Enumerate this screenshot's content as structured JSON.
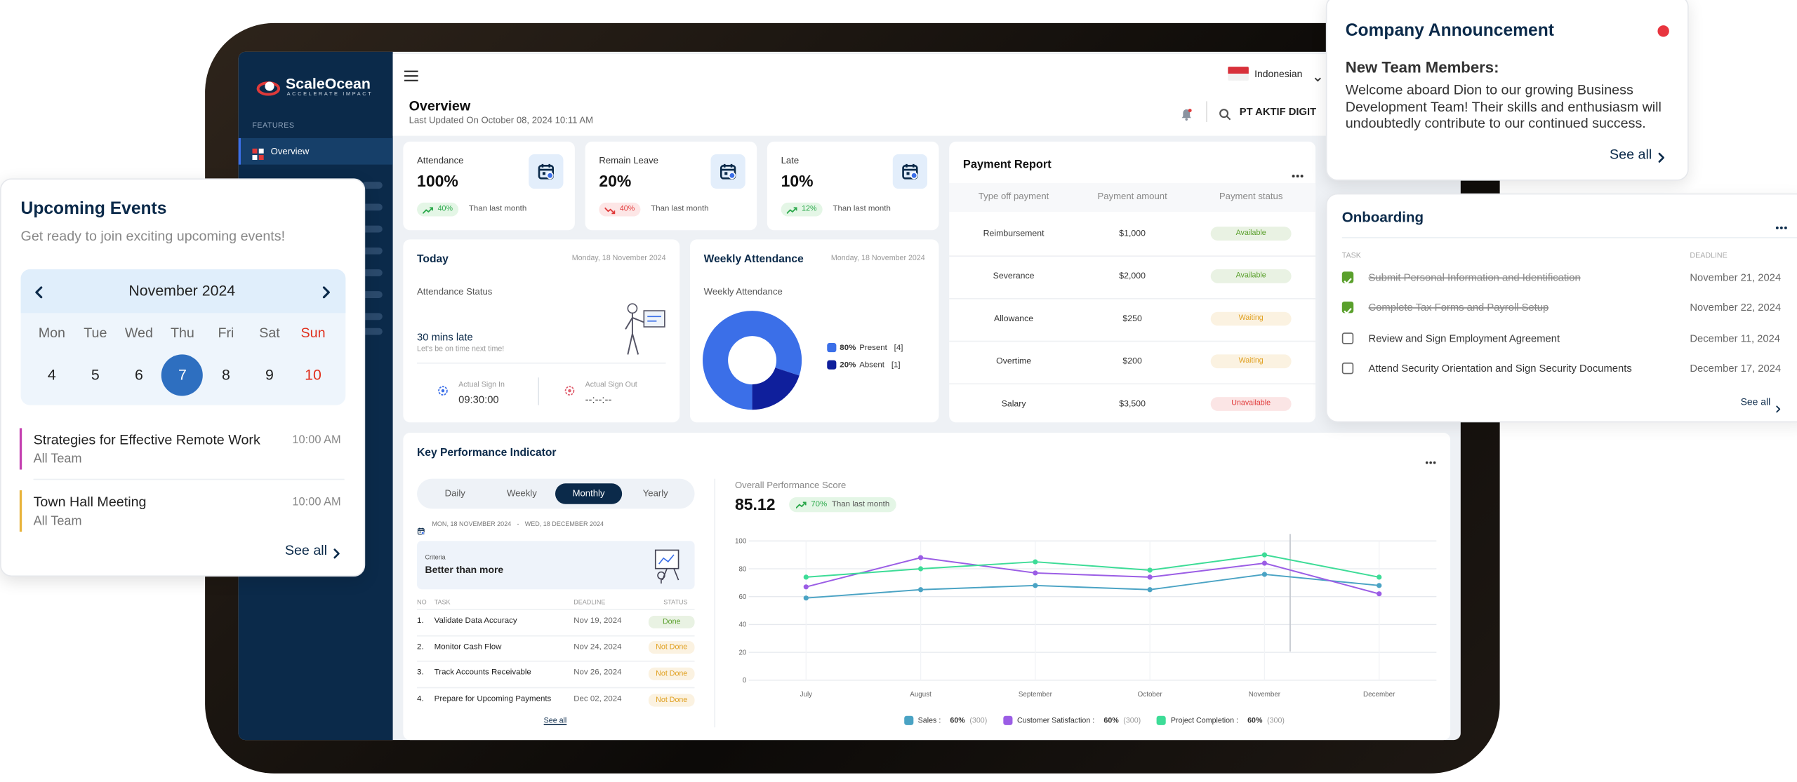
{
  "sidebar": {
    "brand": "ScaleOcean",
    "tagline": "ACCELERATE IMPACT",
    "section": "FEATURES",
    "active_item": "Overview"
  },
  "header": {
    "language": "Indonesian",
    "title": "Overview",
    "last_updated": "Last Updated On October 08, 2024 10:11 AM",
    "company": "PT AKTIF DIGIT"
  },
  "stat_cards": [
    {
      "label": "Attendance",
      "value": "100%",
      "change": "40%",
      "note": "Than last month",
      "trend": "up"
    },
    {
      "label": "Remain Leave",
      "value": "20%",
      "change": "40%",
      "note": "Than last month",
      "trend": "down"
    },
    {
      "label": "Late",
      "value": "10%",
      "change": "12%",
      "note": "Than last month",
      "trend": "up"
    }
  ],
  "today": {
    "title": "Today",
    "date": "Monday, 18 November 2024",
    "status_label": "Attendance Status",
    "status": "30 mins late",
    "hint": "Let's be on time next time!",
    "sign_in_label": "Actual Sign In",
    "sign_in": "09:30:00",
    "sign_out_label": "Actual Sign Out",
    "sign_out": "--:--:--"
  },
  "weekly_attendance": {
    "title": "Weekly Attendance",
    "date": "Monday, 18 November 2024"
  },
  "payment_report": {
    "title": "Payment Report",
    "columns": [
      "Type off payment",
      "Payment amount",
      "Payment status"
    ],
    "rows": [
      {
        "type": "Reimbursement",
        "amount": "$1,000",
        "status": "Available",
        "status_color": "#5aa02c"
      },
      {
        "type": "Severance",
        "amount": "$2,000",
        "status": "Available",
        "status_color": "#5aa02c"
      },
      {
        "type": "Allowance",
        "amount": "$250",
        "status": "Waiting",
        "status_color": "#e0a020"
      },
      {
        "type": "Overtime",
        "amount": "$200",
        "status": "Waiting",
        "status_color": "#e0a020"
      },
      {
        "type": "Salary",
        "amount": "$3,500",
        "status": "Unavailable",
        "status_color": "#e03a3a"
      }
    ]
  },
  "kpi": {
    "title": "Key Performance Indicator",
    "tabs": [
      "Daily",
      "Weekly",
      "Monthly",
      "Yearly"
    ],
    "active_tab": 2,
    "date_from": "MON, 18 NOVEMBER 2024",
    "date_to": "WED, 18 DECEMBER 2024",
    "criteria_label": "Criteria",
    "criteria": "Better than more",
    "columns": [
      "NO",
      "TASK",
      "DEADLINE",
      "STATUS"
    ],
    "tasks": [
      {
        "no": "1.",
        "task": "Validate Data Accuracy",
        "deadline": "Nov 19, 2024",
        "status": "Done",
        "status_color": "#5aa02c"
      },
      {
        "no": "2.",
        "task": "Monitor Cash Flow",
        "deadline": "Nov 24, 2024",
        "status": "Not Done",
        "status_color": "#e0a020"
      },
      {
        "no": "3.",
        "task": "Track Accounts Receivable",
        "deadline": "Nov 26, 2024",
        "status": "Not Done",
        "status_color": "#e0a020"
      },
      {
        "no": "4.",
        "task": "Prepare for Upcoming Payments",
        "deadline": "Dec 02, 2024",
        "status": "Not Done",
        "status_color": "#e0a020"
      }
    ],
    "see_all": "See all",
    "score_label": "Overall Performance Score",
    "score": "85.12",
    "change": "70%",
    "change_note": "Than last month"
  },
  "chart_data": [
    {
      "type": "pie",
      "title": "Weekly Attendance",
      "donut": true,
      "categories": [
        "Present",
        "Absent"
      ],
      "values": [
        80,
        20
      ],
      "value_labels": [
        "80%",
        "20%"
      ],
      "counts": [
        "[4]",
        "[1]"
      ],
      "colors": [
        "#3b6fe8",
        "#0f1f9c"
      ]
    },
    {
      "type": "line",
      "categories": [
        "July",
        "August",
        "September",
        "October",
        "November",
        "December"
      ],
      "series": [
        {
          "name": "Sales",
          "color": "#4aa3c4",
          "values": [
            59,
            65,
            68,
            65,
            76,
            68
          ],
          "share": "60%",
          "count": "(300)"
        },
        {
          "name": "Customer Satisfaction",
          "color": "#9b5de5",
          "values": [
            67,
            88,
            77,
            74,
            84,
            62
          ],
          "share": "60%",
          "count": "(300)"
        },
        {
          "name": "Project Completion",
          "color": "#3ddc97",
          "values": [
            74,
            80,
            85,
            79,
            90,
            74
          ],
          "share": "60%",
          "count": "(300)"
        }
      ],
      "ylim": [
        0,
        100
      ],
      "yticks": [
        0,
        20,
        40,
        60,
        80,
        100
      ],
      "grid": true
    }
  ],
  "upcoming_events": {
    "title": "Upcoming Events",
    "subtitle": "Get ready to join exciting upcoming events!",
    "month": "November 2024",
    "weekdays": [
      "Mon",
      "Tue",
      "Wed",
      "Thu",
      "Fri",
      "Sat",
      "Sun"
    ],
    "days": [
      4,
      5,
      6,
      7,
      8,
      9,
      10
    ],
    "selected": 3,
    "events": [
      {
        "title": "Strategies for Effective Remote Work",
        "time": "10:00 AM",
        "audience": "All Team",
        "color": "#c43fb0"
      },
      {
        "title": "Town Hall Meeting",
        "time": "10:00 AM",
        "audience": "All Team",
        "color": "#e8b33a"
      }
    ],
    "see_all": "See all"
  },
  "announcement": {
    "title": "Company Announcement",
    "heading": "New Team Members:",
    "body": "Welcome aboard Dion to our growing Business Development Team! Their skills and enthusiasm will undoubtedly contribute to our continued success.",
    "see_all": "See all"
  },
  "onboarding": {
    "title": "Onboarding",
    "columns": [
      "TASK",
      "DEADLINE"
    ],
    "tasks": [
      {
        "task": "Submit Personal Information and Identification",
        "deadline": "November 21, 2024",
        "done": true
      },
      {
        "task": "Complete Tax Forms and Payroll Setup",
        "deadline": "November 22, 2024",
        "done": true
      },
      {
        "task": "Review and Sign Employment Agreement",
        "deadline": "December 11, 2024",
        "done": false
      },
      {
        "task": "Attend Security Orientation and Sign Security Documents",
        "deadline": "December 17, 2024",
        "done": false
      }
    ],
    "see_all": "See all"
  }
}
